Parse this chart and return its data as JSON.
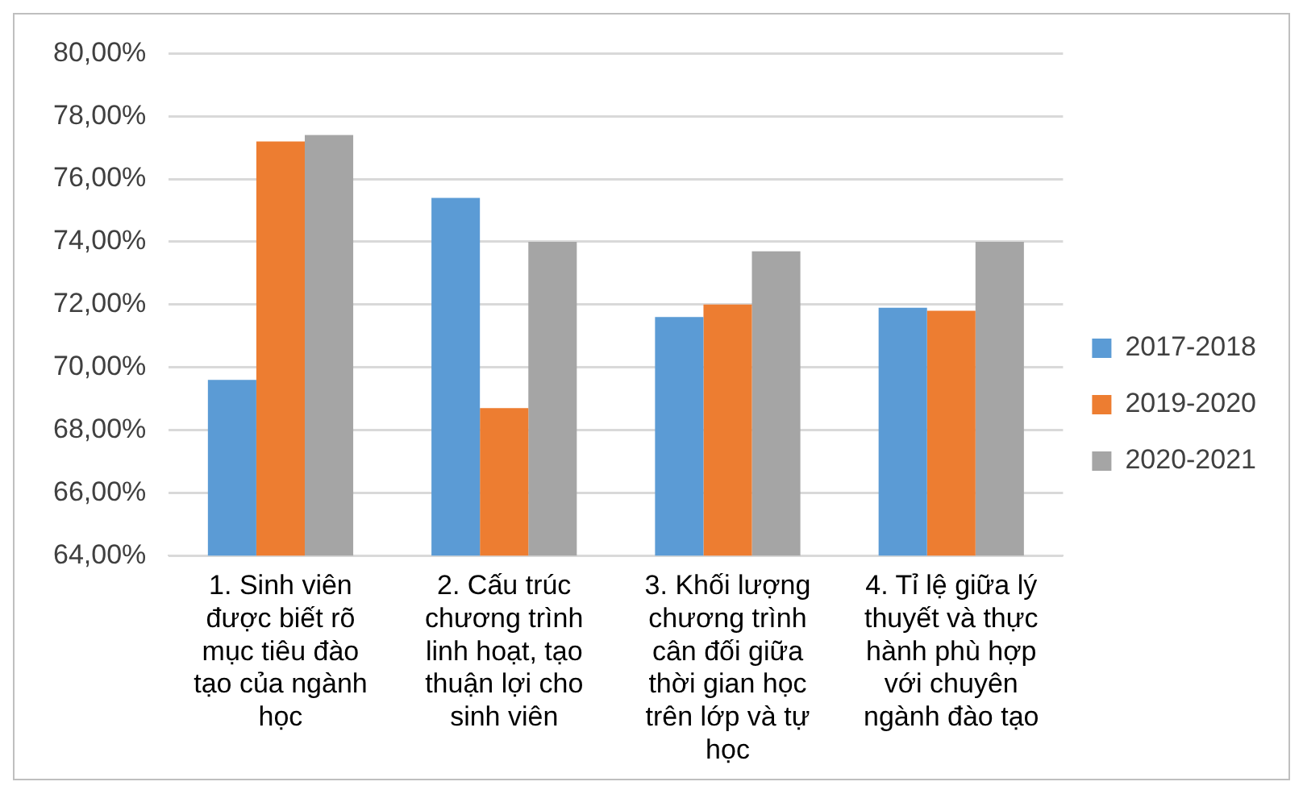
{
  "chart_data": {
    "type": "bar",
    "categories": [
      "1. Sinh viên được biết rõ mục tiêu đào tạo của ngành học",
      "2. Cấu trúc chương trình linh hoạt, tạo thuận lợi cho sinh viên",
      "3. Khối lượng chương trình cân đối giữa thời gian học trên lớp và tự học",
      "4. Tỉ lệ giữa lý thuyết và thực hành phù hợp với chuyên ngành đào tạo"
    ],
    "series": [
      {
        "name": "2017-2018",
        "color": "#5b9bd5",
        "values": [
          69.6,
          75.4,
          71.6,
          71.9
        ]
      },
      {
        "name": "2019-2020",
        "color": "#ed7d31",
        "values": [
          77.2,
          68.7,
          72.0,
          71.8
        ]
      },
      {
        "name": "2020-2021",
        "color": "#a5a5a5",
        "values": [
          77.4,
          74.0,
          73.7,
          74.0
        ]
      }
    ],
    "ylim": [
      64,
      80
    ],
    "yticks": [
      {
        "value": 64,
        "label": "64,00%"
      },
      {
        "value": 66,
        "label": "66,00%"
      },
      {
        "value": 68,
        "label": "68,00%"
      },
      {
        "value": 70,
        "label": "70,00%"
      },
      {
        "value": 72,
        "label": "72,00%"
      },
      {
        "value": 74,
        "label": "74,00%"
      },
      {
        "value": 76,
        "label": "76,00%"
      },
      {
        "value": 78,
        "label": "78,00%"
      },
      {
        "value": 80,
        "label": "80,00%"
      }
    ],
    "grid": "y",
    "legend": "right"
  }
}
